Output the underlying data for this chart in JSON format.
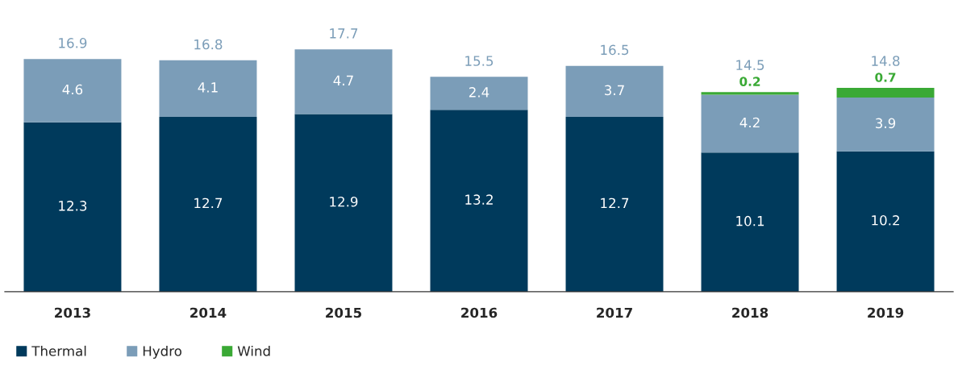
{
  "chart_data": {
    "type": "bar",
    "stacked": true,
    "data_labels": true,
    "legend": "bottom left",
    "grid": false,
    "tick_labels": "x",
    "categories": [
      "2013",
      "2014",
      "2015",
      "2016",
      "2017",
      "2018",
      "2019"
    ],
    "series": [
      {
        "name": "Thermal",
        "color": "#003a5c",
        "values": [
          12.3,
          12.7,
          12.9,
          13.2,
          12.7,
          10.1,
          10.2
        ]
      },
      {
        "name": "Hydro",
        "color": "#7b9db8",
        "values": [
          4.6,
          4.1,
          4.7,
          2.4,
          3.7,
          4.2,
          3.9
        ]
      },
      {
        "name": "Wind",
        "color": "#3aa935",
        "values": [
          null,
          null,
          null,
          null,
          null,
          0.2,
          0.7
        ]
      }
    ],
    "totals": [
      "16.9",
      "16.8",
      "17.7",
      "15.5",
      "16.5",
      "14.5",
      "14.8"
    ]
  }
}
